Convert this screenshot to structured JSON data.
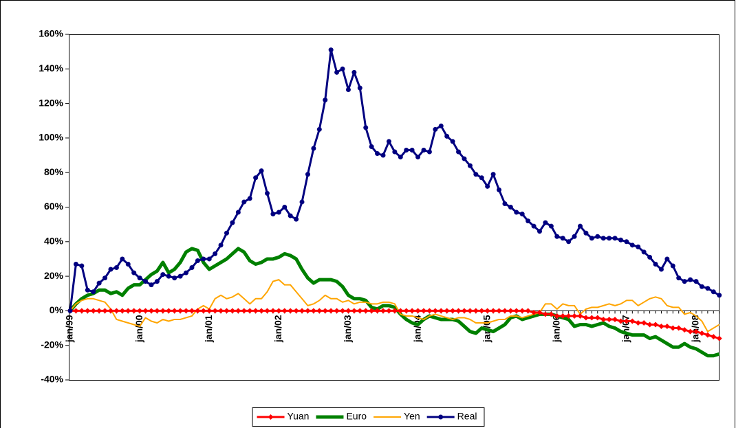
{
  "chart_data": {
    "type": "line",
    "categories": [
      "jan/99",
      null,
      null,
      null,
      null,
      null,
      null,
      null,
      null,
      null,
      null,
      null,
      "jan/00",
      null,
      null,
      null,
      null,
      null,
      null,
      null,
      null,
      null,
      null,
      null,
      "jan/01",
      null,
      null,
      null,
      null,
      null,
      null,
      null,
      null,
      null,
      null,
      null,
      "jan/02",
      null,
      null,
      null,
      null,
      null,
      null,
      null,
      null,
      null,
      null,
      null,
      "jan/03",
      null,
      null,
      null,
      null,
      null,
      null,
      null,
      null,
      null,
      null,
      null,
      "jan/04",
      null,
      null,
      null,
      null,
      null,
      null,
      null,
      null,
      null,
      null,
      null,
      "jan/05",
      null,
      null,
      null,
      null,
      null,
      null,
      null,
      null,
      null,
      null,
      null,
      "jan/06",
      null,
      null,
      null,
      null,
      null,
      null,
      null,
      null,
      null,
      null,
      null,
      "jan/07",
      null,
      null,
      null,
      null,
      null,
      null,
      null,
      null,
      null,
      null,
      null,
      "jan/08",
      null,
      null,
      null,
      null
    ],
    "series": [
      {
        "name": "Yuan",
        "color": "#ff0000",
        "marker": "diamond",
        "values": [
          0,
          0,
          0,
          0,
          0,
          0,
          0,
          0,
          0,
          0,
          0,
          0,
          0,
          0,
          0,
          0,
          0,
          0,
          0,
          0,
          0,
          0,
          0,
          0,
          0,
          0,
          0,
          0,
          0,
          0,
          0,
          0,
          0,
          0,
          0,
          0,
          0,
          0,
          0,
          0,
          0,
          0,
          0,
          0,
          0,
          0,
          0,
          0,
          0,
          0,
          0,
          0,
          0,
          0,
          0,
          0,
          0,
          0,
          0,
          0,
          0,
          0,
          0,
          0,
          0,
          0,
          0,
          0,
          0,
          0,
          0,
          0,
          0,
          0,
          0,
          0,
          0,
          0,
          0,
          0,
          -1,
          -1,
          -2,
          -2,
          -3,
          -3,
          -3,
          -3,
          -3,
          -4,
          -4,
          -4,
          -5,
          -5,
          -5,
          -6,
          -6,
          -6,
          -7,
          -7,
          -8,
          -8,
          -9,
          -9,
          -10,
          -10,
          -11,
          -12,
          -12,
          -13,
          -14,
          -15,
          -16
        ]
      },
      {
        "name": "Euro",
        "color": "#008000",
        "marker": null,
        "values": [
          0,
          4,
          7,
          9,
          10,
          12,
          12,
          10,
          11,
          9,
          13,
          15,
          15,
          18,
          21,
          23,
          28,
          22,
          24,
          28,
          34,
          36,
          35,
          28,
          24,
          26,
          28,
          30,
          33,
          36,
          34,
          29,
          27,
          28,
          30,
          30,
          31,
          33,
          32,
          30,
          24,
          19,
          16,
          18,
          18,
          18,
          17,
          14,
          9,
          7,
          7,
          6,
          2,
          1,
          3,
          3,
          2,
          -2,
          -5,
          -7,
          -8,
          -5,
          -3,
          -4,
          -5,
          -5,
          -5,
          -6,
          -9,
          -12,
          -13,
          -10,
          -11,
          -12,
          -10,
          -8,
          -4,
          -3,
          -5,
          -4,
          -3,
          -2,
          -2,
          -2,
          -3,
          -4,
          -5,
          -9,
          -8,
          -8,
          -9,
          -8,
          -7,
          -9,
          -10,
          -12,
          -13,
          -14,
          -14,
          -14,
          -16,
          -15,
          -17,
          -19,
          -21,
          -21,
          -19,
          -21,
          -22,
          -24,
          -26,
          -26,
          -25
        ]
      },
      {
        "name": "Yen",
        "color": "#ffa500",
        "marker": null,
        "values": [
          0,
          4,
          6,
          7,
          7,
          6,
          5,
          1,
          -5,
          -6,
          -7,
          -8,
          -9,
          -4,
          -6,
          -7,
          -5,
          -6,
          -5,
          -5,
          -4,
          -3,
          1,
          3,
          1,
          7,
          9,
          7,
          8,
          10,
          7,
          4,
          7,
          7,
          11,
          17,
          18,
          15,
          15,
          11,
          7,
          3,
          4,
          6,
          9,
          7,
          7,
          5,
          6,
          4,
          5,
          5,
          4,
          4,
          5,
          5,
          4,
          -2,
          -3,
          -3,
          -4,
          -5,
          -3,
          -2,
          -3,
          -4,
          -5,
          -4,
          -4,
          -5,
          -7,
          -7,
          -7,
          -6,
          -5,
          -5,
          -3,
          -3,
          -4,
          -3,
          -2,
          -1,
          4,
          4,
          1,
          4,
          3,
          3,
          -2,
          1,
          2,
          2,
          3,
          4,
          3,
          4,
          6,
          6,
          3,
          5,
          7,
          8,
          7,
          3,
          2,
          2,
          -2,
          -1,
          -3,
          -6,
          -12,
          -10,
          -8
        ]
      },
      {
        "name": "Real",
        "color": "#000080",
        "marker": "circle",
        "values": [
          0,
          27,
          26,
          12,
          11,
          16,
          19,
          24,
          25,
          30,
          27,
          22,
          19,
          17,
          15,
          17,
          21,
          20,
          19,
          20,
          22,
          25,
          29,
          30,
          30,
          33,
          38,
          45,
          51,
          57,
          63,
          65,
          77,
          81,
          68,
          56,
          57,
          60,
          55,
          53,
          63,
          79,
          94,
          105,
          122,
          151,
          138,
          140,
          128,
          138,
          129,
          106,
          95,
          91,
          90,
          98,
          92,
          89,
          93,
          93,
          89,
          93,
          92,
          105,
          107,
          101,
          98,
          92,
          88,
          84,
          79,
          77,
          72,
          79,
          70,
          62,
          60,
          57,
          56,
          52,
          49,
          46,
          51,
          49,
          43,
          42,
          40,
          43,
          49,
          45,
          42,
          43,
          42,
          42,
          42,
          41,
          40,
          38,
          37,
          34,
          31,
          27,
          24,
          30,
          26,
          19,
          17,
          18,
          17,
          14,
          13,
          11,
          9
        ]
      }
    ],
    "ylim": [
      -40,
      160
    ],
    "yticks": [
      {
        "value": -40,
        "label": "-40%"
      },
      {
        "value": -20,
        "label": "-20%"
      },
      {
        "value": 0,
        "label": "0%"
      },
      {
        "value": 20,
        "label": "20%"
      },
      {
        "value": 40,
        "label": "40%"
      },
      {
        "value": 60,
        "label": "60%"
      },
      {
        "value": 80,
        "label": "80%"
      },
      {
        "value": 100,
        "label": "100%"
      },
      {
        "value": 120,
        "label": "120%"
      },
      {
        "value": 140,
        "label": "140%"
      },
      {
        "value": 160,
        "label": "160%"
      }
    ],
    "legend": "bottom"
  }
}
